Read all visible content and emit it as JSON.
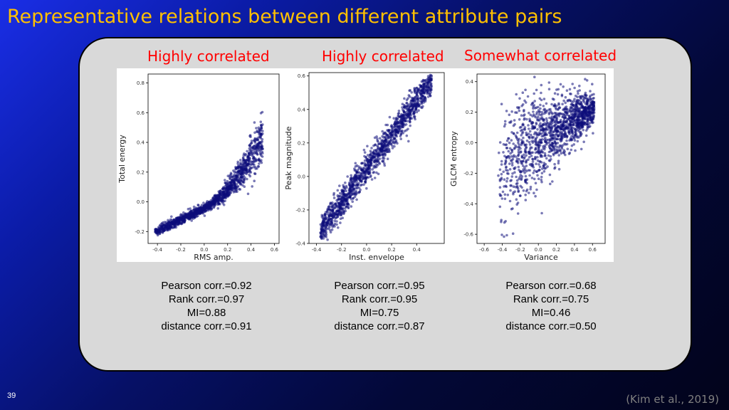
{
  "slide": {
    "title": "Representative relations between different attribute pairs",
    "number": "39",
    "citation": "(Kim et al., 2019)"
  },
  "colors": {
    "title": "#ffc000",
    "heading": "#ff0000",
    "points": "#0d0d7a",
    "panel": "#d9d9d9"
  },
  "chart_data": [
    {
      "type": "scatter",
      "heading": "Highly correlated",
      "xlabel": "RMS amp.",
      "ylabel": "Total energy",
      "xlim": [
        -0.48,
        0.64
      ],
      "ylim": [
        -0.28,
        0.86
      ],
      "xticks": [
        "-0.4",
        "-0.2",
        "0.0",
        "0.2",
        "0.4",
        "0.6"
      ],
      "xtick_values": [
        -0.4,
        -0.2,
        0.0,
        0.2,
        0.4,
        0.6
      ],
      "yticks": [
        "-0.2",
        "0.0",
        "0.2",
        "0.4",
        "0.6",
        "0.8"
      ],
      "ytick_values": [
        -0.2,
        0.0,
        0.2,
        0.4,
        0.6,
        0.8
      ],
      "relation": "convex",
      "x_range": [
        -0.42,
        0.5
      ],
      "stats": [
        "Pearson corr.=0.92",
        "Rank corr.=0.97",
        "MI=0.88",
        "distance corr.=0.91"
      ]
    },
    {
      "type": "scatter",
      "heading": "Highly correlated",
      "xlabel": "Inst. envelope",
      "ylabel": "Peak magnitude",
      "xlim": [
        -0.46,
        0.62
      ],
      "ylim": [
        -0.4,
        0.62
      ],
      "xticks": [
        "-0.4",
        "-0.2",
        "0.0",
        "0.2",
        "0.4"
      ],
      "xtick_values": [
        -0.4,
        -0.2,
        0.0,
        0.2,
        0.4
      ],
      "yticks": [
        "-0.4",
        "-0.2",
        "0.0",
        "0.2",
        "0.4",
        "0.6"
      ],
      "ytick_values": [
        -0.4,
        -0.2,
        0.0,
        0.2,
        0.4,
        0.6
      ],
      "relation": "linear",
      "x_range": [
        -0.37,
        0.52
      ],
      "stats": [
        "Pearson corr.=0.95",
        "Rank corr.=0.95",
        "MI=0.75",
        "distance corr.=0.87"
      ]
    },
    {
      "type": "scatter",
      "heading": "Somewhat correlated",
      "xlabel": "Variance",
      "ylabel": "GLCM entropy",
      "xlim": [
        -0.68,
        0.74
      ],
      "ylim": [
        -0.66,
        0.45
      ],
      "xticks": [
        "-0.6",
        "-0.4",
        "-0.2",
        "0.0",
        "0.2",
        "0.4",
        "0.6"
      ],
      "xtick_values": [
        -0.6,
        -0.4,
        -0.2,
        0.0,
        0.2,
        0.4,
        0.6
      ],
      "yticks": [
        "-0.6",
        "-0.4",
        "-0.2",
        "0.0",
        "0.2",
        "0.4"
      ],
      "ytick_values": [
        -0.6,
        -0.4,
        -0.2,
        0.0,
        0.2,
        0.4
      ],
      "relation": "concave",
      "x_range": [
        -0.45,
        0.62
      ],
      "stats": [
        "Pearson corr.=0.68",
        "Rank corr.=0.75",
        "MI=0.46",
        "distance corr.=0.50"
      ]
    }
  ]
}
